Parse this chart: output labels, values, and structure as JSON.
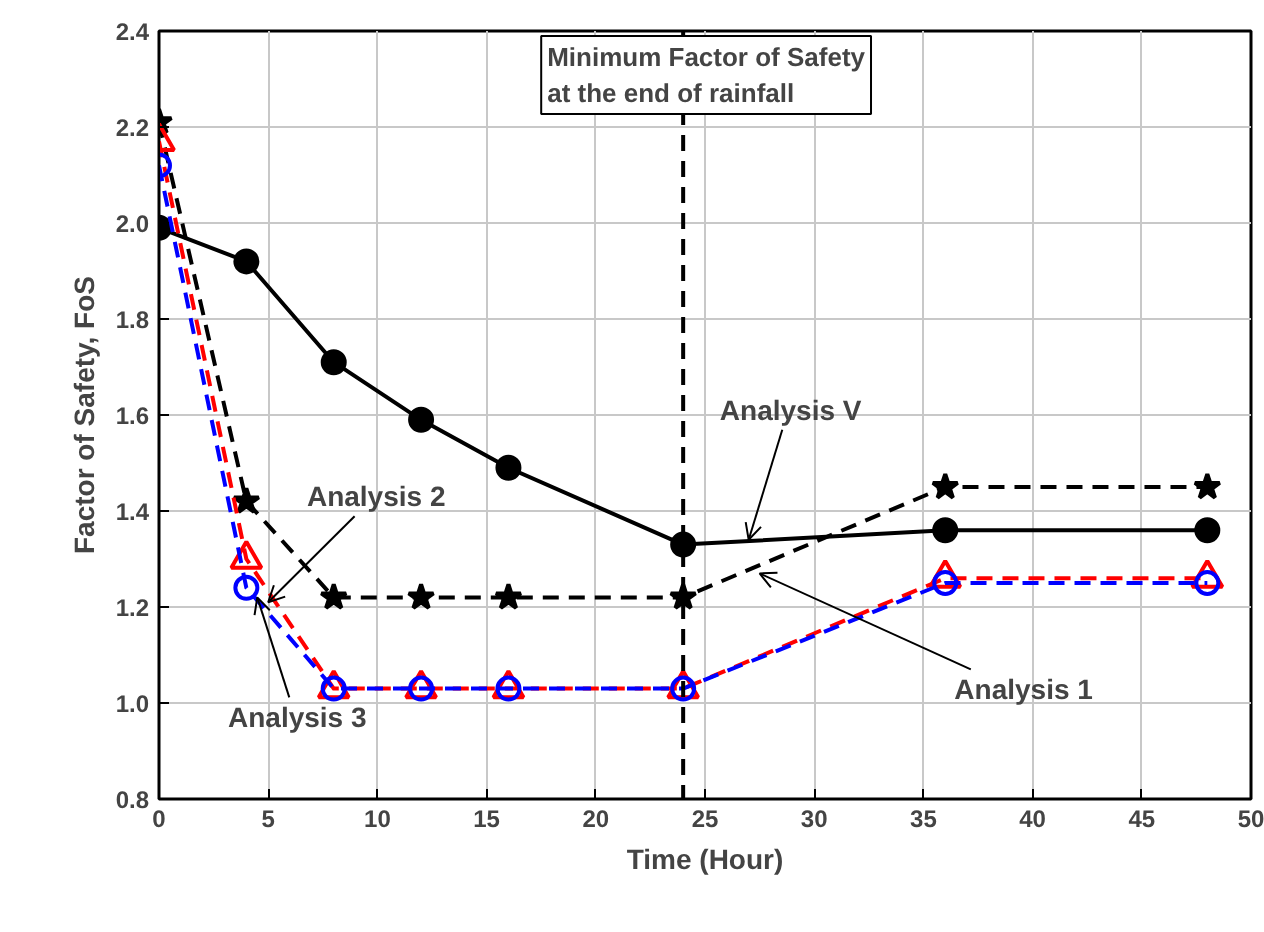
{
  "chart_data": {
    "type": "line",
    "xlabel": "Time (Hour)",
    "ylabel": "Factor of Safety, FoS",
    "x": [
      0,
      4,
      8,
      12,
      16,
      24,
      36,
      48
    ],
    "series": [
      {
        "color": "#000000",
        "marker": "circle",
        "line_style": "solid",
        "values": [
          1.99,
          1.92,
          1.71,
          1.59,
          1.49,
          1.33,
          1.36,
          1.36
        ]
      },
      {
        "color": "#000000",
        "marker": "star",
        "line_style": "dashed",
        "values": [
          2.21,
          1.42,
          1.22,
          1.22,
          1.22,
          1.22,
          1.45,
          1.45
        ]
      },
      {
        "color": "#ff0000",
        "marker": "triangle",
        "line_style": "dashed",
        "values": [
          2.17,
          1.3,
          1.03,
          1.03,
          1.03,
          1.03,
          1.26,
          1.26
        ]
      },
      {
        "color": "#0000ff",
        "marker": "circle",
        "line_style": "dashed",
        "values": [
          2.12,
          1.24,
          1.03,
          1.03,
          1.03,
          1.03,
          1.25,
          1.25
        ]
      }
    ],
    "xlim": [
      0,
      50
    ],
    "xticks": [
      0,
      5,
      10,
      15,
      20,
      25,
      30,
      35,
      40,
      45,
      50
    ],
    "ylim": [
      0.8,
      2.4
    ],
    "yticks": [
      0.8,
      {
        "value": 1,
        "label": "1.0"
      },
      1.2,
      1.4,
      1.6,
      1.8,
      {
        "value": 2,
        "label": "2.0"
      },
      2.2,
      2.4
    ],
    "grid": true,
    "ref_lines": [
      {
        "axis": "x",
        "value": 24,
        "label": "Minimum Factor of Safety\nat the end of rainfall",
        "line_style": "dashed",
        "color": "#000000"
      }
    ],
    "annotations": [
      {
        "text": "Analysis V",
        "x": 27,
        "y": 1.34
      },
      {
        "text": "Analysis 1",
        "x": 27.5,
        "y": 1.27
      },
      {
        "text": "Analysis 2",
        "x": 5,
        "y": 1.21
      },
      {
        "text": "Analysis 3",
        "x": 4.5,
        "y": 1.22
      }
    ]
  }
}
